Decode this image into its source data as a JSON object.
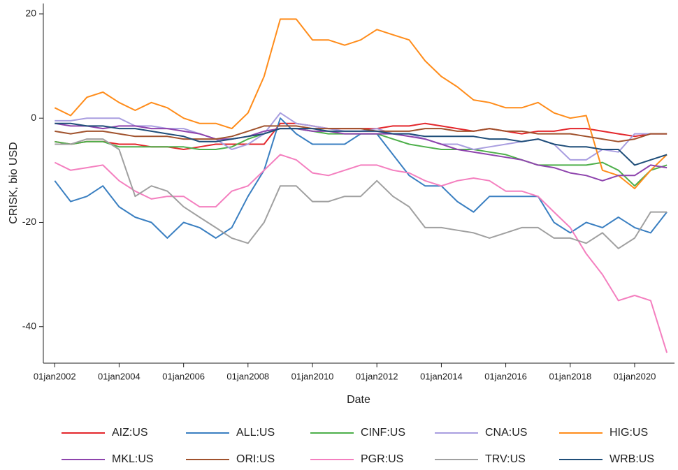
{
  "chart_data": {
    "type": "line",
    "x_label": "Date",
    "y_label": "CRISK, bio USD",
    "x": [
      "2002-01-01",
      "2002-07-01",
      "2003-01-01",
      "2003-07-01",
      "2004-01-01",
      "2004-07-01",
      "2005-01-01",
      "2005-07-01",
      "2006-01-01",
      "2006-07-01",
      "2007-01-01",
      "2007-07-01",
      "2008-01-01",
      "2008-07-01",
      "2009-01-01",
      "2009-07-01",
      "2010-01-01",
      "2010-07-01",
      "2011-01-01",
      "2011-07-01",
      "2012-01-01",
      "2012-07-01",
      "2013-01-01",
      "2013-07-01",
      "2014-01-01",
      "2014-07-01",
      "2015-01-01",
      "2015-07-01",
      "2016-01-01",
      "2016-07-01",
      "2017-01-01",
      "2017-07-01",
      "2018-01-01",
      "2018-07-01",
      "2019-01-01",
      "2019-07-01",
      "2020-01-01",
      "2020-07-01",
      "2021-01-01"
    ],
    "xlim": [
      "2001-08-25",
      "2021-03-28"
    ],
    "xticks": [
      {
        "value": "2002-01-01",
        "label": "01jan2002"
      },
      {
        "value": "2004-01-01",
        "label": "01jan2004"
      },
      {
        "value": "2006-01-01",
        "label": "01jan2006"
      },
      {
        "value": "2008-01-01",
        "label": "01jan2008"
      },
      {
        "value": "2010-01-01",
        "label": "01jan2010"
      },
      {
        "value": "2012-01-01",
        "label": "01jan2012"
      },
      {
        "value": "2014-01-01",
        "label": "01jan2014"
      },
      {
        "value": "2016-01-01",
        "label": "01jan2016"
      },
      {
        "value": "2018-01-01",
        "label": "01jan2018"
      },
      {
        "value": "2020-01-01",
        "label": "01jan2020"
      }
    ],
    "ylim": [
      -47,
      22
    ],
    "yticks": [
      -40,
      -20,
      0,
      20
    ],
    "grid": false,
    "legend": "bottom",
    "series": [
      {
        "name": "AIZ:US",
        "color": "#e3262b",
        "values": [
          -4.5,
          -5,
          -4.5,
          -4.5,
          -5,
          -5,
          -5.5,
          -5.5,
          -6,
          -5.5,
          -5,
          -5,
          -5,
          -5,
          -1,
          -1,
          -1.5,
          -2,
          -2,
          -2,
          -2,
          -1.5,
          -1.5,
          -1,
          -1.5,
          -2,
          -2.5,
          -2,
          -2.5,
          -3,
          -2.5,
          -2.5,
          -2,
          -2,
          -2.5,
          -3,
          -3.5,
          -3,
          -3
        ]
      },
      {
        "name": "ALL:US",
        "color": "#3a7fc1",
        "values": [
          -12,
          -16,
          -15,
          -13,
          -17,
          -19,
          -20,
          -23,
          -20,
          -21,
          -23,
          -21,
          -15,
          -10,
          0,
          -3,
          -5,
          -5,
          -5,
          -3,
          -3,
          -7,
          -11,
          -13,
          -13,
          -16,
          -18,
          -15,
          -15,
          -15,
          -15,
          -20,
          -22,
          -20,
          -21,
          -19,
          -21,
          -22,
          -18
        ]
      },
      {
        "name": "CINF:US",
        "color": "#4daf4a",
        "values": [
          -4.5,
          -5,
          -4.5,
          -4.5,
          -5.5,
          -5.5,
          -5.5,
          -5.5,
          -5.5,
          -6,
          -6,
          -5.5,
          -4,
          -3,
          -2,
          -2,
          -2.5,
          -3,
          -3,
          -3,
          -3,
          -4,
          -5,
          -5.5,
          -6,
          -6,
          -6,
          -6.5,
          -7,
          -8,
          -9,
          -9,
          -9,
          -9,
          -8.5,
          -10,
          -13,
          -10,
          -9
        ]
      },
      {
        "name": "CNA:US",
        "color": "#a99ee0",
        "values": [
          -0.5,
          -0.5,
          0,
          0,
          0,
          -1.5,
          -1.5,
          -2,
          -2,
          -3,
          -4,
          -6,
          -5,
          -3,
          1,
          -1,
          -1.5,
          -2,
          -2.5,
          -2.5,
          -2,
          -3,
          -3,
          -4,
          -5,
          -5,
          -6,
          -5.5,
          -5,
          -4.5,
          -4,
          -5,
          -8,
          -8,
          -6,
          -6.5,
          -3,
          -3,
          -3
        ]
      },
      {
        "name": "HIG:US",
        "color": "#ff8c1a",
        "values": [
          2,
          0.5,
          4,
          5,
          3,
          1.5,
          3,
          2,
          0,
          -1,
          -1,
          -2,
          1,
          8,
          19,
          19,
          15,
          15,
          14,
          15,
          17,
          16,
          15,
          11,
          8,
          6,
          3.5,
          3,
          2,
          2,
          3,
          1,
          0,
          0.5,
          -10,
          -11,
          -13.5,
          -10,
          -7
        ]
      },
      {
        "name": "MKL:US",
        "color": "#8e44ad",
        "values": [
          -1,
          -1.5,
          -1.5,
          -2,
          -1.5,
          -1.5,
          -2,
          -2,
          -2.5,
          -3,
          -4,
          -4,
          -3.5,
          -2.5,
          -2,
          -2,
          -2.5,
          -2.5,
          -3,
          -3,
          -3,
          -3,
          -3.5,
          -4,
          -5,
          -6,
          -6.5,
          -7,
          -7.5,
          -8,
          -9,
          -9.5,
          -10.5,
          -11,
          -12,
          -11,
          -11,
          -9,
          -9.5
        ]
      },
      {
        "name": "ORI:US",
        "color": "#a0522d",
        "values": [
          -2.5,
          -3,
          -2.5,
          -2.5,
          -3,
          -3.5,
          -3.5,
          -3.5,
          -4,
          -4,
          -4,
          -3.5,
          -2.5,
          -1.5,
          -1.5,
          -1.5,
          -2,
          -2,
          -2,
          -2,
          -2.5,
          -2.5,
          -2.5,
          -2,
          -2,
          -2.5,
          -2.5,
          -2,
          -2.5,
          -2.5,
          -3,
          -3,
          -3,
          -3.5,
          -4,
          -4.5,
          -4,
          -3,
          -3
        ]
      },
      {
        "name": "PGR:US",
        "color": "#f47fbf",
        "values": [
          -8.5,
          -10,
          -9.5,
          -9,
          -12,
          -14,
          -15.5,
          -15,
          -15,
          -17,
          -17,
          -14,
          -13,
          -10,
          -7,
          -8,
          -10.5,
          -11,
          -10,
          -9,
          -9,
          -10,
          -10.5,
          -12,
          -13,
          -12,
          -11.5,
          -12,
          -14,
          -14,
          -15,
          -18,
          -21,
          -26,
          -30,
          -35,
          -34,
          -35,
          -45
        ]
      },
      {
        "name": "TRV:US",
        "color": "#a0a0a0",
        "values": [
          -5,
          -5,
          -4,
          -4,
          -6,
          -15,
          -13,
          -14,
          -17,
          -19,
          -21,
          -23,
          -24,
          -20,
          -13,
          -13,
          -16,
          -16,
          -15,
          -15,
          -12,
          -15,
          -17,
          -21,
          -21,
          -21.5,
          -22,
          -23,
          -22,
          -21,
          -21,
          -23,
          -23,
          -24,
          -22,
          -25,
          -23,
          -18,
          -18
        ]
      },
      {
        "name": "WRB:US",
        "color": "#1f4e79",
        "values": [
          -1,
          -1,
          -1.5,
          -1.5,
          -2,
          -2,
          -2.5,
          -3,
          -3.5,
          -4.5,
          -4.5,
          -4,
          -3.5,
          -3,
          -2,
          -2,
          -2,
          -2.5,
          -2.5,
          -2.5,
          -2.5,
          -3,
          -3,
          -3.5,
          -3.5,
          -3.5,
          -3.5,
          -4,
          -4,
          -4.5,
          -4,
          -5,
          -5.5,
          -5.5,
          -6,
          -6,
          -9,
          -8,
          -7
        ]
      }
    ]
  }
}
